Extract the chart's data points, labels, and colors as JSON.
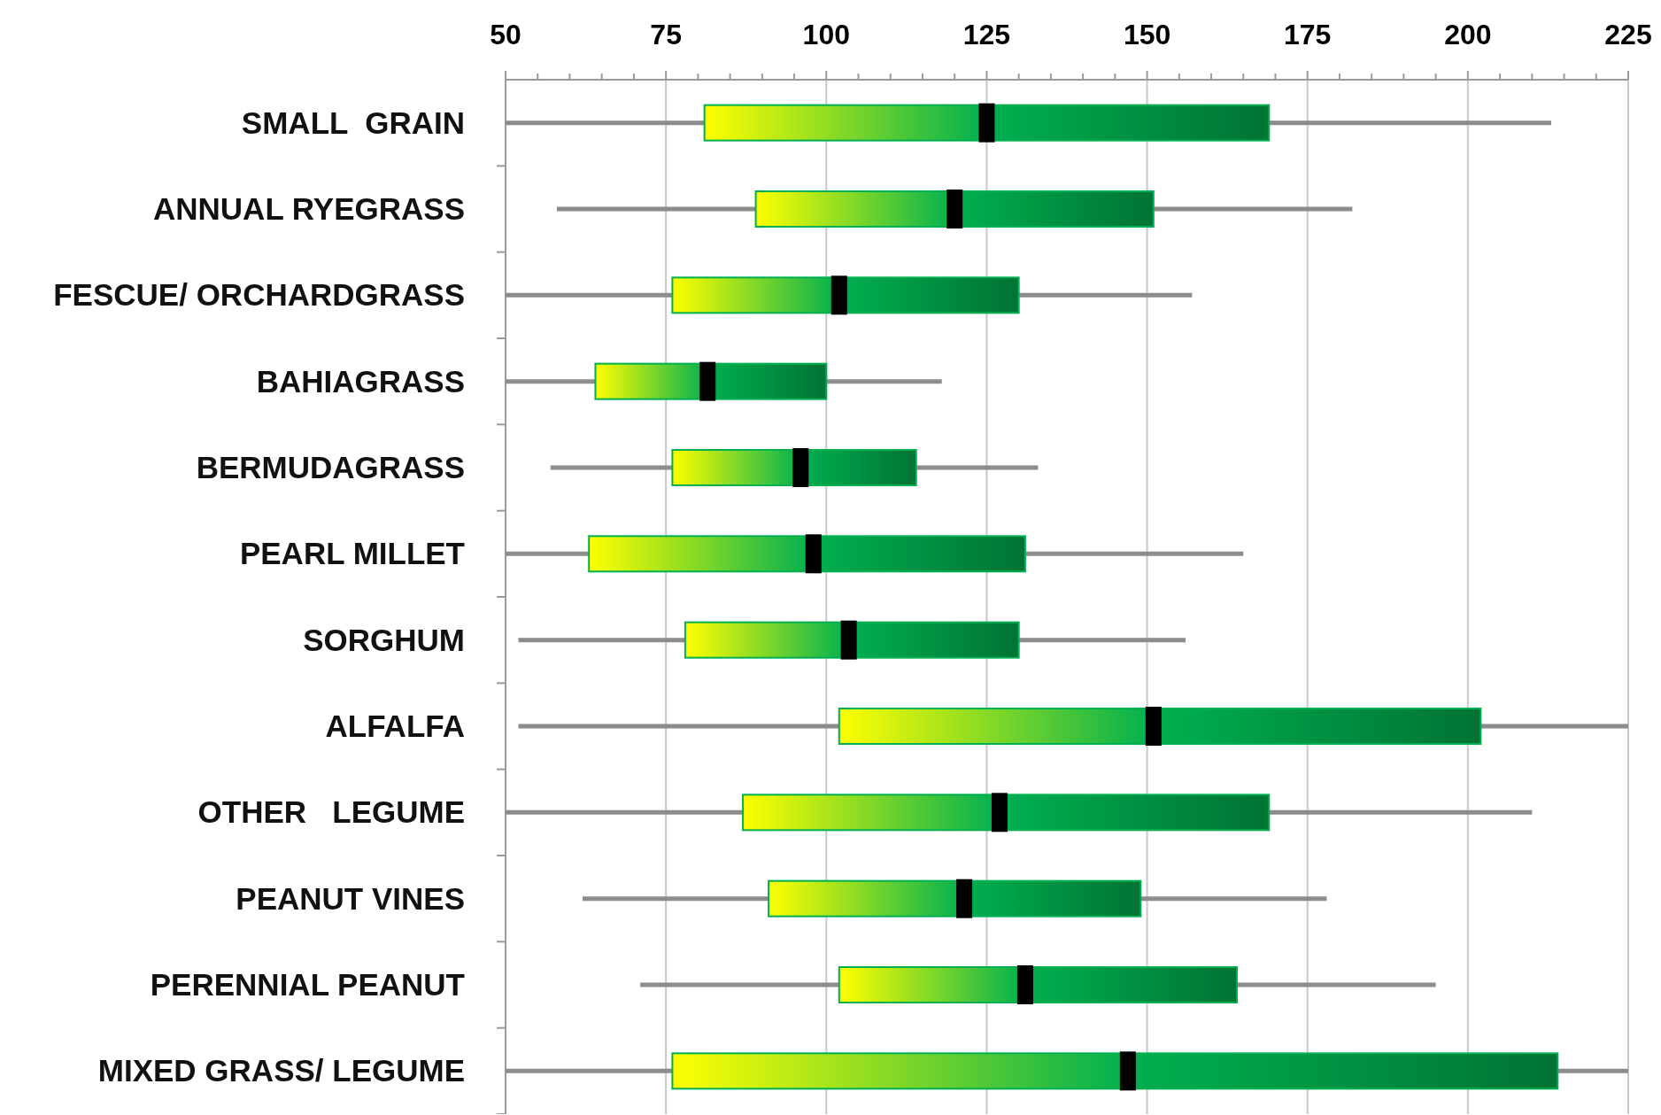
{
  "chart_data": {
    "type": "box",
    "orientation": "horizontal",
    "categories": [
      "SMALL  GRAIN",
      "ANNUAL RYEGRASS",
      "FESCUE/ ORCHARDGRASS",
      "BAHIAGRASS",
      "BERMUDAGRASS",
      "PEARL MILLET",
      "SORGHUM",
      "ALFALFA",
      "OTHER   LEGUME",
      "PEANUT VINES",
      "PERENNIAL PEANUT",
      "MIXED GRASS/ LEGUME"
    ],
    "xlim": [
      50,
      225
    ],
    "xticks": [
      50,
      {
        "value": 55,
        "label": null
      },
      {
        "value": 60,
        "label": null
      },
      {
        "value": 65,
        "label": null
      },
      {
        "value": 70,
        "label": null
      },
      75,
      {
        "value": 80,
        "label": null
      },
      {
        "value": 85,
        "label": null
      },
      {
        "value": 90,
        "label": null
      },
      {
        "value": 95,
        "label": null
      },
      100,
      {
        "value": 105,
        "label": null
      },
      {
        "value": 110,
        "label": null
      },
      {
        "value": 115,
        "label": null
      },
      {
        "value": 120,
        "label": null
      },
      125,
      {
        "value": 130,
        "label": null
      },
      {
        "value": 135,
        "label": null
      },
      {
        "value": 140,
        "label": null
      },
      {
        "value": 145,
        "label": null
      },
      150,
      {
        "value": 155,
        "label": null
      },
      {
        "value": 160,
        "label": null
      },
      {
        "value": 165,
        "label": null
      },
      {
        "value": 170,
        "label": null
      },
      175,
      {
        "value": 180,
        "label": null
      },
      {
        "value": 185,
        "label": null
      },
      {
        "value": 190,
        "label": null
      },
      {
        "value": 195,
        "label": null
      },
      200,
      {
        "value": 205,
        "label": null
      },
      {
        "value": 210,
        "label": null
      },
      {
        "value": 215,
        "label": null
      },
      {
        "value": 220,
        "label": null
      },
      225
    ],
    "grid": "x",
    "series": [
      {
        "color": "#00b050",
        "boxes": [
          {
            "low": 50,
            "q1": 81,
            "median": 125,
            "q3": 169,
            "high": 213
          },
          {
            "low": 58,
            "q1": 89,
            "median": 120,
            "q3": 151,
            "high": 182
          },
          {
            "low": 50,
            "q1": 76,
            "median": 102,
            "q3": 130,
            "high": 157
          },
          {
            "low": 50,
            "q1": 64,
            "median": 81.5,
            "q3": 100,
            "high": 118
          },
          {
            "low": 57,
            "q1": 76,
            "median": 96,
            "q3": 114,
            "high": 133
          },
          {
            "low": 50,
            "q1": 63,
            "median": 98,
            "q3": 131,
            "high": 165
          },
          {
            "low": 52,
            "q1": 78,
            "median": 103.5,
            "q3": 130,
            "high": 156
          },
          {
            "low": 52,
            "q1": 102,
            "median": 151,
            "q3": 202,
            "high": 225
          },
          {
            "low": 50,
            "q1": 87,
            "median": 127,
            "q3": 169,
            "high": 210
          },
          {
            "low": 62,
            "q1": 91,
            "median": 121.5,
            "q3": 149,
            "high": 178
          },
          {
            "low": 71,
            "q1": 102,
            "median": 131,
            "q3": 164,
            "high": 195
          },
          {
            "low": 50,
            "q1": 76,
            "median": 147,
            "q3": 214,
            "high": 225
          }
        ]
      }
    ]
  }
}
